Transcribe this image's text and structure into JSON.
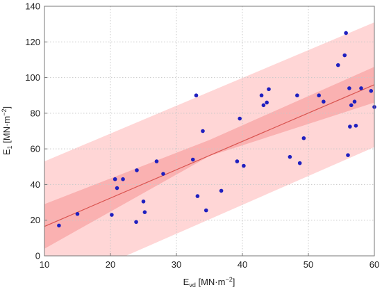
{
  "chart_data": {
    "type": "scatter",
    "title": "",
    "xlabel": {
      "base": "E",
      "sub": "vd",
      "unit_pre": " [MN·m",
      "unit_sup": "−2",
      "unit_post": "]"
    },
    "ylabel": {
      "base": "E",
      "sub": "1",
      "unit_pre": " [MN·m",
      "unit_sup": "−2",
      "unit_post": "]"
    },
    "xlim": [
      10,
      60
    ],
    "ylim": [
      0,
      140
    ],
    "x_ticks": [
      "10",
      "20",
      "30",
      "40",
      "50",
      "60"
    ],
    "y_ticks": [
      "0",
      "20",
      "40",
      "60",
      "80",
      "100",
      "120",
      "140"
    ],
    "grid": true,
    "colors": {
      "points": "#1f1fbf",
      "fit_line": "#d9534f",
      "prediction_band": "#ffd6d6",
      "confidence_band": "#f9aaaa",
      "grid": "#c8c8c8"
    },
    "fit_line": {
      "x": [
        10,
        60
      ],
      "y": [
        16.5,
        96
      ]
    },
    "confidence_band": {
      "x": [
        10,
        35,
        60
      ],
      "upper": [
        29,
        65,
        106
      ],
      "lower": [
        4,
        56,
        86
      ]
    },
    "prediction_band": {
      "x": [
        10,
        60
      ],
      "upper": [
        53,
        131
      ],
      "lower": [
        -20,
        61
      ]
    },
    "points": {
      "x": [
        12.2,
        15.0,
        20.2,
        20.7,
        21.0,
        21.9,
        23.9,
        24.0,
        25.0,
        25.2,
        27.0,
        28.0,
        32.5,
        33.0,
        33.2,
        34.0,
        34.5,
        36.8,
        39.2,
        39.6,
        40.2,
        42.9,
        43.2,
        43.7,
        44.0,
        47.2,
        48.3,
        48.7,
        49.3,
        51.6,
        52.3,
        54.5,
        55.5,
        55.7,
        56.0,
        56.2,
        56.3,
        56.5,
        57.0,
        57.2,
        58.0,
        59.5,
        60.0
      ],
      "y": [
        17,
        23.5,
        23,
        43,
        38,
        43,
        19,
        48,
        30.5,
        24.5,
        53,
        46,
        54,
        90,
        33.5,
        70,
        25.5,
        36.5,
        53,
        77,
        50.5,
        90,
        84.5,
        86,
        93.5,
        55.5,
        90,
        52,
        66,
        90,
        86.5,
        107,
        112.5,
        125,
        56.5,
        94,
        72.5,
        84.5,
        86.5,
        73,
        94,
        92.5,
        83.5
      ]
    }
  }
}
